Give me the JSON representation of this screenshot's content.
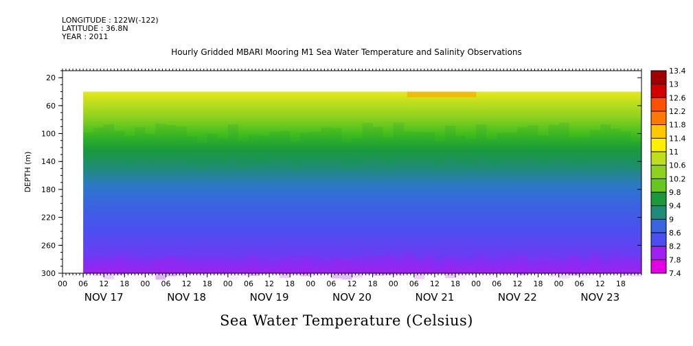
{
  "header": {
    "longitude": "LONGITUDE : 122W(-122)",
    "latitude": "LATITUDE : 36.8N",
    "year": "YEAR : 2011"
  },
  "title": "Hourly Gridded MBARI Mooring M1 Sea Water Temperature and Salinity Observations",
  "x_title": "Sea Water Temperature (Celsius)",
  "colors": {
    "background": "#ffffff",
    "palette": [
      "#e600e6",
      "#a020f0",
      "#8c2cf2",
      "#6a3cf5",
      "#4a50f0",
      "#3a64e0",
      "#2c78c8",
      "#1f8c78",
      "#1a9a3c",
      "#1faa28",
      "#3cbc1e",
      "#66c81e",
      "#8ed21e",
      "#bede1e",
      "#e6e61e",
      "#fff000",
      "#ffc800",
      "#ffa000",
      "#ff7800",
      "#ff5000",
      "#ff2800",
      "#d20000",
      "#a00000"
    ]
  },
  "chart_data": {
    "type": "heatmap",
    "title": "Hourly Gridded MBARI Mooring M1 Sea Water Temperature and Salinity Observations",
    "xlabel": "",
    "ylabel": "DEPTH (m)",
    "ylim": [
      300,
      10
    ],
    "y_ticks": [
      20,
      60,
      100,
      140,
      180,
      220,
      260,
      300
    ],
    "x_hour_ticks": [
      "00",
      "06",
      "12",
      "18",
      "00",
      "06",
      "12",
      "18",
      "00",
      "06",
      "12",
      "18",
      "00",
      "06",
      "12",
      "18",
      "00",
      "06",
      "12",
      "18",
      "00",
      "06",
      "12",
      "18",
      "00",
      "06",
      "12",
      "18"
    ],
    "x_days": [
      "NOV 17",
      "NOV 18",
      "NOV 19",
      "NOV 20",
      "NOV 21",
      "NOV 22",
      "NOV 23"
    ],
    "colorbar_label": "Sea Water Temperature (Celsius)",
    "colorbar_levels": [
      7.4,
      7.8,
      8.2,
      8.6,
      9,
      9.4,
      9.8,
      10.2,
      10.6,
      11,
      11.4,
      11.8,
      12.2,
      12.6,
      13,
      13.4
    ],
    "data_start": "NOV 17 06",
    "surface_layer_depth_m": [
      10,
      20
    ],
    "gap_depth_m": [
      20,
      40
    ],
    "depth_profile_typical": [
      {
        "depth": 40,
        "temp": 11.0
      },
      {
        "depth": 60,
        "temp": 10.6
      },
      {
        "depth": 100,
        "temp": 9.6
      },
      {
        "depth": 140,
        "temp": 9.2
      },
      {
        "depth": 180,
        "temp": 8.8
      },
      {
        "depth": 220,
        "temp": 8.4
      },
      {
        "depth": 260,
        "temp": 8.0
      },
      {
        "depth": 300,
        "temp": 7.6
      }
    ]
  }
}
